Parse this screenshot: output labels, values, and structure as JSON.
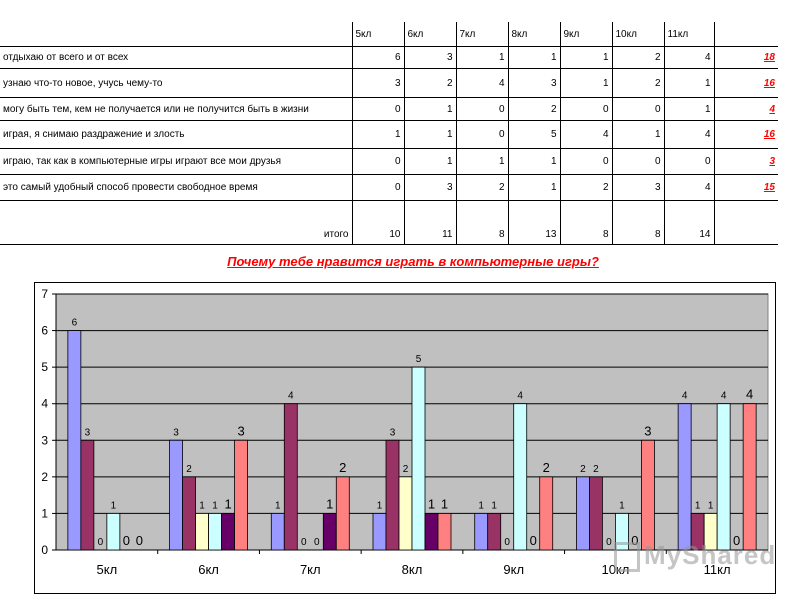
{
  "table": {
    "columns": [
      "5кл",
      "6кл",
      "7кл",
      "8кл",
      "9кл",
      "10кл",
      "11кл"
    ],
    "rows": [
      {
        "label": "отдыхаю от всего и от всех",
        "values": [
          6,
          3,
          1,
          1,
          1,
          2,
          4
        ],
        "total": "18"
      },
      {
        "label": "узнаю что-то новое, учусь чему-то",
        "values": [
          3,
          2,
          4,
          3,
          1,
          2,
          1
        ],
        "total": "16"
      },
      {
        "label": "могу быть тем, кем не получается или не получится быть в жизни",
        "values": [
          0,
          1,
          0,
          2,
          0,
          0,
          1
        ],
        "total": "4"
      },
      {
        "label": "играя, я снимаю раздражение и злость",
        "values": [
          1,
          1,
          0,
          5,
          4,
          1,
          4
        ],
        "total": "16"
      },
      {
        "label": "играю, так как в компьютерные игры играют все мои друзья",
        "values": [
          0,
          1,
          1,
          1,
          0,
          0,
          0
        ],
        "total": "3"
      },
      {
        "label": "это самый удобный способ провести свободное время",
        "values": [
          0,
          3,
          2,
          1,
          2,
          3,
          4
        ],
        "total": "15"
      }
    ],
    "total_row": {
      "label": "итого",
      "values": [
        "10",
        "11",
        "8",
        "13",
        "8",
        "8",
        "14"
      ]
    }
  },
  "chart_title": "Почему тебе нравится играть в компьютерные игры?",
  "chart_data": {
    "type": "bar",
    "title": "Почему тебе нравится играть в компьютерные игры?",
    "categories": [
      "5кл",
      "6кл",
      "7кл",
      "8кл",
      "9кл",
      "10кл",
      "11кл"
    ],
    "ylim": [
      0,
      7
    ],
    "yticks": [
      "0",
      "1",
      "2",
      "3",
      "4",
      "5",
      "6",
      "7"
    ],
    "grid": true,
    "legend": "none",
    "series": [
      {
        "values": [
          6,
          3,
          1,
          1,
          1,
          2,
          4
        ],
        "color": "#9999ff"
      },
      {
        "values": [
          3,
          2,
          4,
          3,
          1,
          2,
          1
        ],
        "color": "#993366"
      },
      {
        "values": [
          0,
          1,
          0,
          2,
          0,
          0,
          1
        ],
        "color": "#ffffcc"
      },
      {
        "values": [
          1,
          1,
          0,
          5,
          4,
          1,
          4
        ],
        "color": "#ccffff"
      },
      {
        "values": [
          0,
          1,
          1,
          1,
          0,
          0,
          0
        ],
        "color": "#660066"
      },
      {
        "values": [
          0,
          3,
          2,
          1,
          2,
          3,
          4
        ],
        "color": "#ff8080"
      }
    ]
  },
  "watermark": "MyShared"
}
